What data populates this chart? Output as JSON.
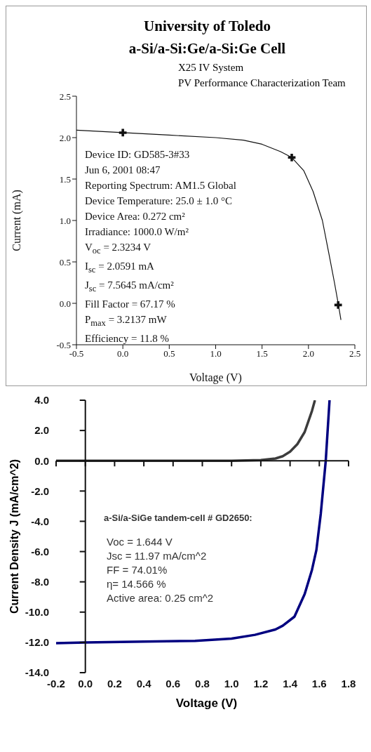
{
  "chart_data": [
    {
      "type": "line",
      "title": "University of Toledo",
      "subtitle": "a-Si/a-Si:Ge/a-Si:Ge Cell",
      "xlabel": "Voltage (V)",
      "ylabel": "Current (mA)",
      "xlim": [
        -0.5,
        2.5
      ],
      "xticks": [
        -0.5,
        {
          "value": 0,
          "label": "0.0"
        },
        0.5,
        {
          "value": 1,
          "label": "1.0"
        },
        1.5,
        {
          "value": 2,
          "label": "2.0"
        },
        2.5
      ],
      "ylim": [
        -0.5,
        2.5
      ],
      "yticks": [
        -0.5,
        {
          "value": 0,
          "label": "0.0"
        },
        0.5,
        {
          "value": 1,
          "label": "1.0"
        },
        1.5,
        {
          "value": 2,
          "label": "2.0"
        },
        2.5
      ],
      "annotations": [
        "X25 IV System",
        "PV Performance Characterization Team",
        "Device ID: GD585-3#33",
        "Jun 6, 2001 08:47",
        "Reporting Spectrum: AM1.5 Global",
        "Device Temperature: 25.0 ± 1.0 °C",
        "Device Area: 0.272 cm²",
        "Irradiance: 1000.0 W/m²",
        "V$_{oc}$ = 2.3234 V",
        "I$_{sc}$ = 2.0591 mA",
        "J$_{sc}$ = 7.5645 mA/cm²",
        "Fill Factor = 67.17 %",
        "P$_{max}$ = 3.2137 mW",
        "Efficiency = 11.8 %"
      ],
      "series": [
        {
          "color": "#111111",
          "x": [
            -0.5,
            0,
            0.5,
            1.0,
            1.3,
            1.5,
            1.7,
            1.82,
            1.95,
            2.05,
            2.15,
            2.22,
            2.28,
            2.32,
            2.35
          ],
          "values": [
            2.09,
            2.06,
            2.03,
            2.0,
            1.97,
            1.92,
            1.83,
            1.76,
            1.6,
            1.35,
            1.0,
            0.6,
            0.25,
            0.0,
            -0.2
          ]
        },
        {
          "type": "scatter",
          "marker": "cross",
          "color": "#111111",
          "x": [
            0,
            1.82,
            2.32
          ],
          "values": [
            2.06,
            1.76,
            -0.02
          ]
        }
      ]
    },
    {
      "type": "line",
      "xlabel": "Voltage (V)",
      "ylabel": "Current Density J (mA/cm^2)",
      "xlim": [
        -0.2,
        1.8
      ],
      "xticks": [
        -0.2,
        {
          "value": 0,
          "label": "0.0"
        },
        0.2,
        0.4,
        0.6,
        0.8,
        {
          "value": 1,
          "label": "1.0"
        },
        1.2,
        1.4,
        1.6,
        1.8
      ],
      "ylim": [
        -14,
        4
      ],
      "yticks": [
        {
          "value": -14,
          "label": "-14.0"
        },
        {
          "value": -12,
          "label": "-12.0"
        },
        {
          "value": -10,
          "label": "-10.0"
        },
        {
          "value": -8,
          "label": "-8.0"
        },
        {
          "value": -6,
          "label": "-6.0"
        },
        {
          "value": -4,
          "label": "-4.0"
        },
        {
          "value": -2,
          "label": "-2.0"
        },
        {
          "value": 0,
          "label": "0.0"
        },
        {
          "value": 2,
          "label": "2.0"
        },
        {
          "value": 4,
          "label": "4.0"
        }
      ],
      "annotations": [
        "a-Si/a-SiGe tandem-cell # GD2650:",
        "Voc = 1.644 V",
        "Jsc = 11.97 mA/cm^2",
        "FF = 74.01%",
        "η= 14.566 %",
        "Active area: 0.25 cm^2"
      ],
      "series": [
        {
          "color": "#3c3c3c",
          "x": [
            -0.2,
            0,
            0.5,
            1.0,
            1.2,
            1.3,
            1.35,
            1.4,
            1.45,
            1.5,
            1.55,
            1.57
          ],
          "values": [
            0,
            0,
            0,
            0,
            0.05,
            0.15,
            0.3,
            0.6,
            1.1,
            1.9,
            3.3,
            4.0
          ]
        },
        {
          "color": "#000080",
          "x": [
            -0.2,
            0,
            0.4,
            0.75,
            1.0,
            1.16,
            1.3,
            1.35,
            1.43,
            1.5,
            1.55,
            1.58,
            1.61,
            1.644,
            1.67
          ],
          "values": [
            -12.05,
            -12.0,
            -11.95,
            -11.9,
            -11.75,
            -11.5,
            -11.15,
            -10.9,
            -10.3,
            -8.8,
            -7.2,
            -5.9,
            -3.5,
            0,
            4.0
          ]
        }
      ]
    }
  ]
}
